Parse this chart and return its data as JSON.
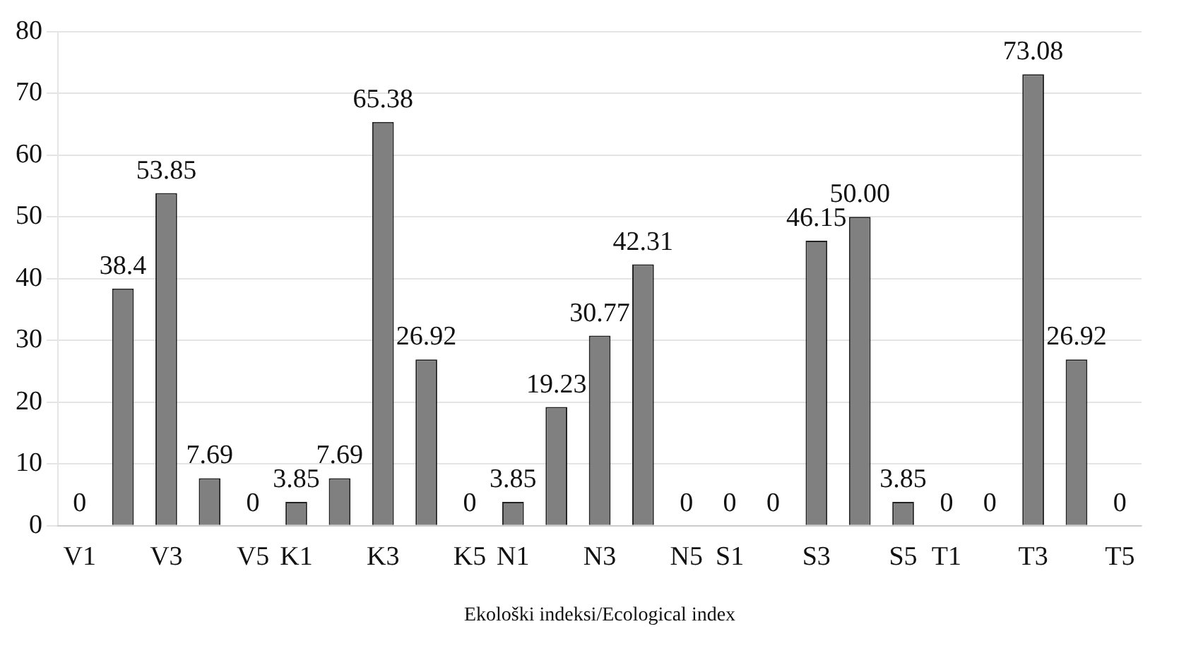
{
  "chart_data": {
    "type": "bar",
    "xlabel": "Ekološki indeksi/Ecological index",
    "categories": [
      "V1",
      null,
      "V3",
      null,
      "V5",
      "K1",
      null,
      "K3",
      null,
      "K5",
      "N1",
      null,
      "N3",
      null,
      "N5",
      "S1",
      null,
      "S3",
      null,
      "S5",
      "T1",
      null,
      "T3",
      null,
      "T5"
    ],
    "values": [
      0,
      38.4,
      53.85,
      7.69,
      0,
      3.85,
      7.69,
      65.38,
      26.92,
      0,
      3.85,
      19.23,
      30.77,
      42.31,
      0,
      0,
      0,
      46.15,
      50.0,
      3.85,
      0,
      0,
      73.08,
      26.92,
      0
    ],
    "value_labels": [
      "0",
      "38.4",
      "53.85",
      "7.69",
      "0",
      "3.85",
      "7.69",
      "65.38",
      "26.92",
      "0",
      "3.85",
      "19.23",
      "30.77",
      "42.31",
      "0",
      "0",
      "0",
      "46.15",
      "50.00",
      "3.85",
      "0",
      "0",
      "73.08",
      "26.92",
      "0"
    ],
    "color": "#808080",
    "ylim": [
      0,
      80
    ],
    "yticks": [
      0,
      10,
      20,
      30,
      40,
      50,
      60,
      70,
      80
    ],
    "grid": "y",
    "legend": false
  }
}
